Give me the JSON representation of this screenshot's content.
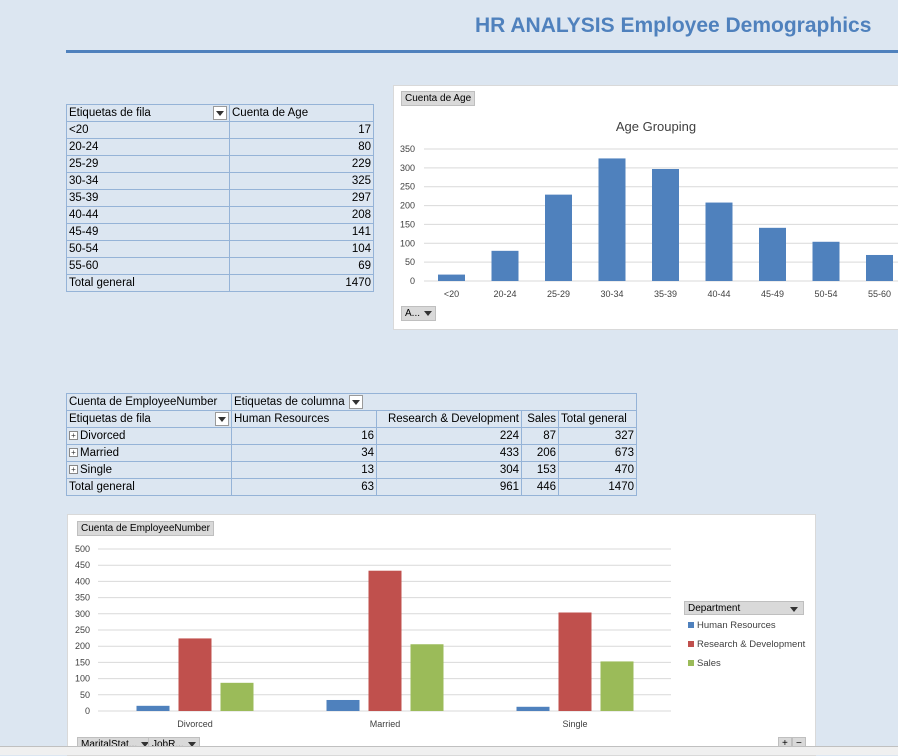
{
  "title": "HR ANALYSIS Employee Demographics",
  "colors": {
    "accent": "#4f81bd",
    "hr": "#4f81bd",
    "rd": "#c0504d",
    "sales": "#9bbb59"
  },
  "age_table": {
    "row_header": "Etiquetas de fila",
    "value_header": "Cuenta de Age",
    "rows": [
      {
        "label": "<20",
        "value": "17"
      },
      {
        "label": "20-24",
        "value": "80"
      },
      {
        "label": "25-29",
        "value": "229"
      },
      {
        "label": "30-34",
        "value": "325"
      },
      {
        "label": "35-39",
        "value": "297"
      },
      {
        "label": "40-44",
        "value": "208"
      },
      {
        "label": "45-49",
        "value": "141"
      },
      {
        "label": "50-54",
        "value": "104"
      },
      {
        "label": "55-60",
        "value": "69"
      }
    ],
    "total_label": "Total general",
    "total_value": "1470"
  },
  "age_chart_field_button": "Cuenta de Age",
  "age_chart_axis_button": "A...",
  "marital_table": {
    "value_header": "Cuenta de EmployeeNumber",
    "col_header": "Etiquetas de columna",
    "row_header": "Etiquetas de fila",
    "columns": [
      "Human Resources",
      "Research & Development",
      "Sales",
      "Total general"
    ],
    "rows": [
      {
        "label": "Divorced",
        "values": [
          "16",
          "224",
          "87",
          "327"
        ]
      },
      {
        "label": "Married",
        "values": [
          "34",
          "433",
          "206",
          "673"
        ]
      },
      {
        "label": "Single",
        "values": [
          "13",
          "304",
          "153",
          "470"
        ]
      }
    ],
    "total_label": "Total general",
    "total_values": [
      "63",
      "961",
      "446",
      "1470"
    ]
  },
  "marital_chart_field_button": "Cuenta de EmployeeNumber",
  "legend_title": "Department",
  "filter_buttons": [
    "MaritalStat...",
    "JobR..."
  ],
  "zoom_buttons": [
    "+",
    "−"
  ],
  "chart_data": [
    {
      "type": "bar",
      "title": "Age Grouping",
      "categories": [
        "<20",
        "20-24",
        "25-29",
        "30-34",
        "35-39",
        "40-44",
        "45-49",
        "50-54",
        "55-60"
      ],
      "values": [
        17,
        80,
        229,
        325,
        297,
        208,
        141,
        104,
        69
      ],
      "ylim": [
        0,
        350
      ],
      "yticks": [
        "0",
        "50",
        "100",
        "150",
        "200",
        "250",
        "300",
        "350"
      ],
      "grid": true
    },
    {
      "type": "bar",
      "categories": [
        "Divorced",
        "Married",
        "Single"
      ],
      "series": [
        {
          "name": "Human Resources",
          "values": [
            16,
            34,
            13
          ]
        },
        {
          "name": "Research & Development",
          "values": [
            224,
            433,
            304
          ]
        },
        {
          "name": "Sales",
          "values": [
            87,
            206,
            153
          ]
        }
      ],
      "ylim": [
        0,
        500
      ],
      "yticks": [
        "0",
        "50",
        "100",
        "150",
        "200",
        "250",
        "300",
        "350",
        "400",
        "450",
        "500"
      ],
      "grid": true,
      "legend": "right"
    }
  ]
}
